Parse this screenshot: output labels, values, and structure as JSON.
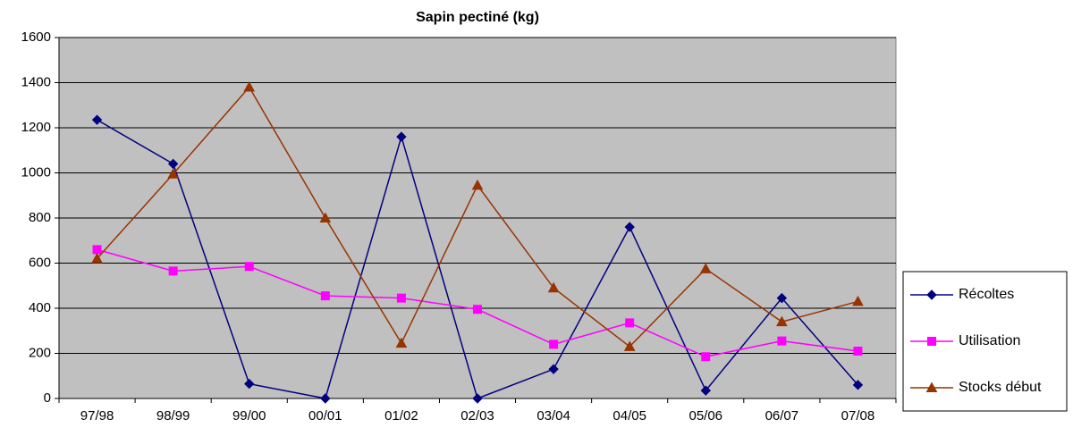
{
  "chart_data": {
    "type": "line",
    "title": "Sapin pectiné (kg)",
    "categories": [
      "97/98",
      "98/99",
      "99/00",
      "00/01",
      "01/02",
      "02/03",
      "03/04",
      "04/05",
      "05/06",
      "06/07",
      "07/08"
    ],
    "series": [
      {
        "name": "Récoltes",
        "color": "#000080",
        "marker": "diamond",
        "values": [
          1235,
          1040,
          65,
          0,
          1160,
          0,
          130,
          760,
          35,
          445,
          60
        ]
      },
      {
        "name": "Utilisation",
        "color": "#ff00ff",
        "marker": "square",
        "values": [
          660,
          565,
          585,
          455,
          445,
          395,
          240,
          335,
          185,
          255,
          210
        ]
      },
      {
        "name": "Stocks début",
        "color": "#993300",
        "marker": "triangle",
        "values": [
          620,
          995,
          1380,
          800,
          245,
          945,
          490,
          230,
          575,
          340,
          430
        ]
      }
    ],
    "ylim": [
      0,
      1600
    ],
    "yticks": [
      0,
      200,
      400,
      600,
      800,
      1000,
      1200,
      1400,
      1600
    ],
    "grid": true,
    "legend": "right",
    "plot_background": "#c0c0c0"
  }
}
